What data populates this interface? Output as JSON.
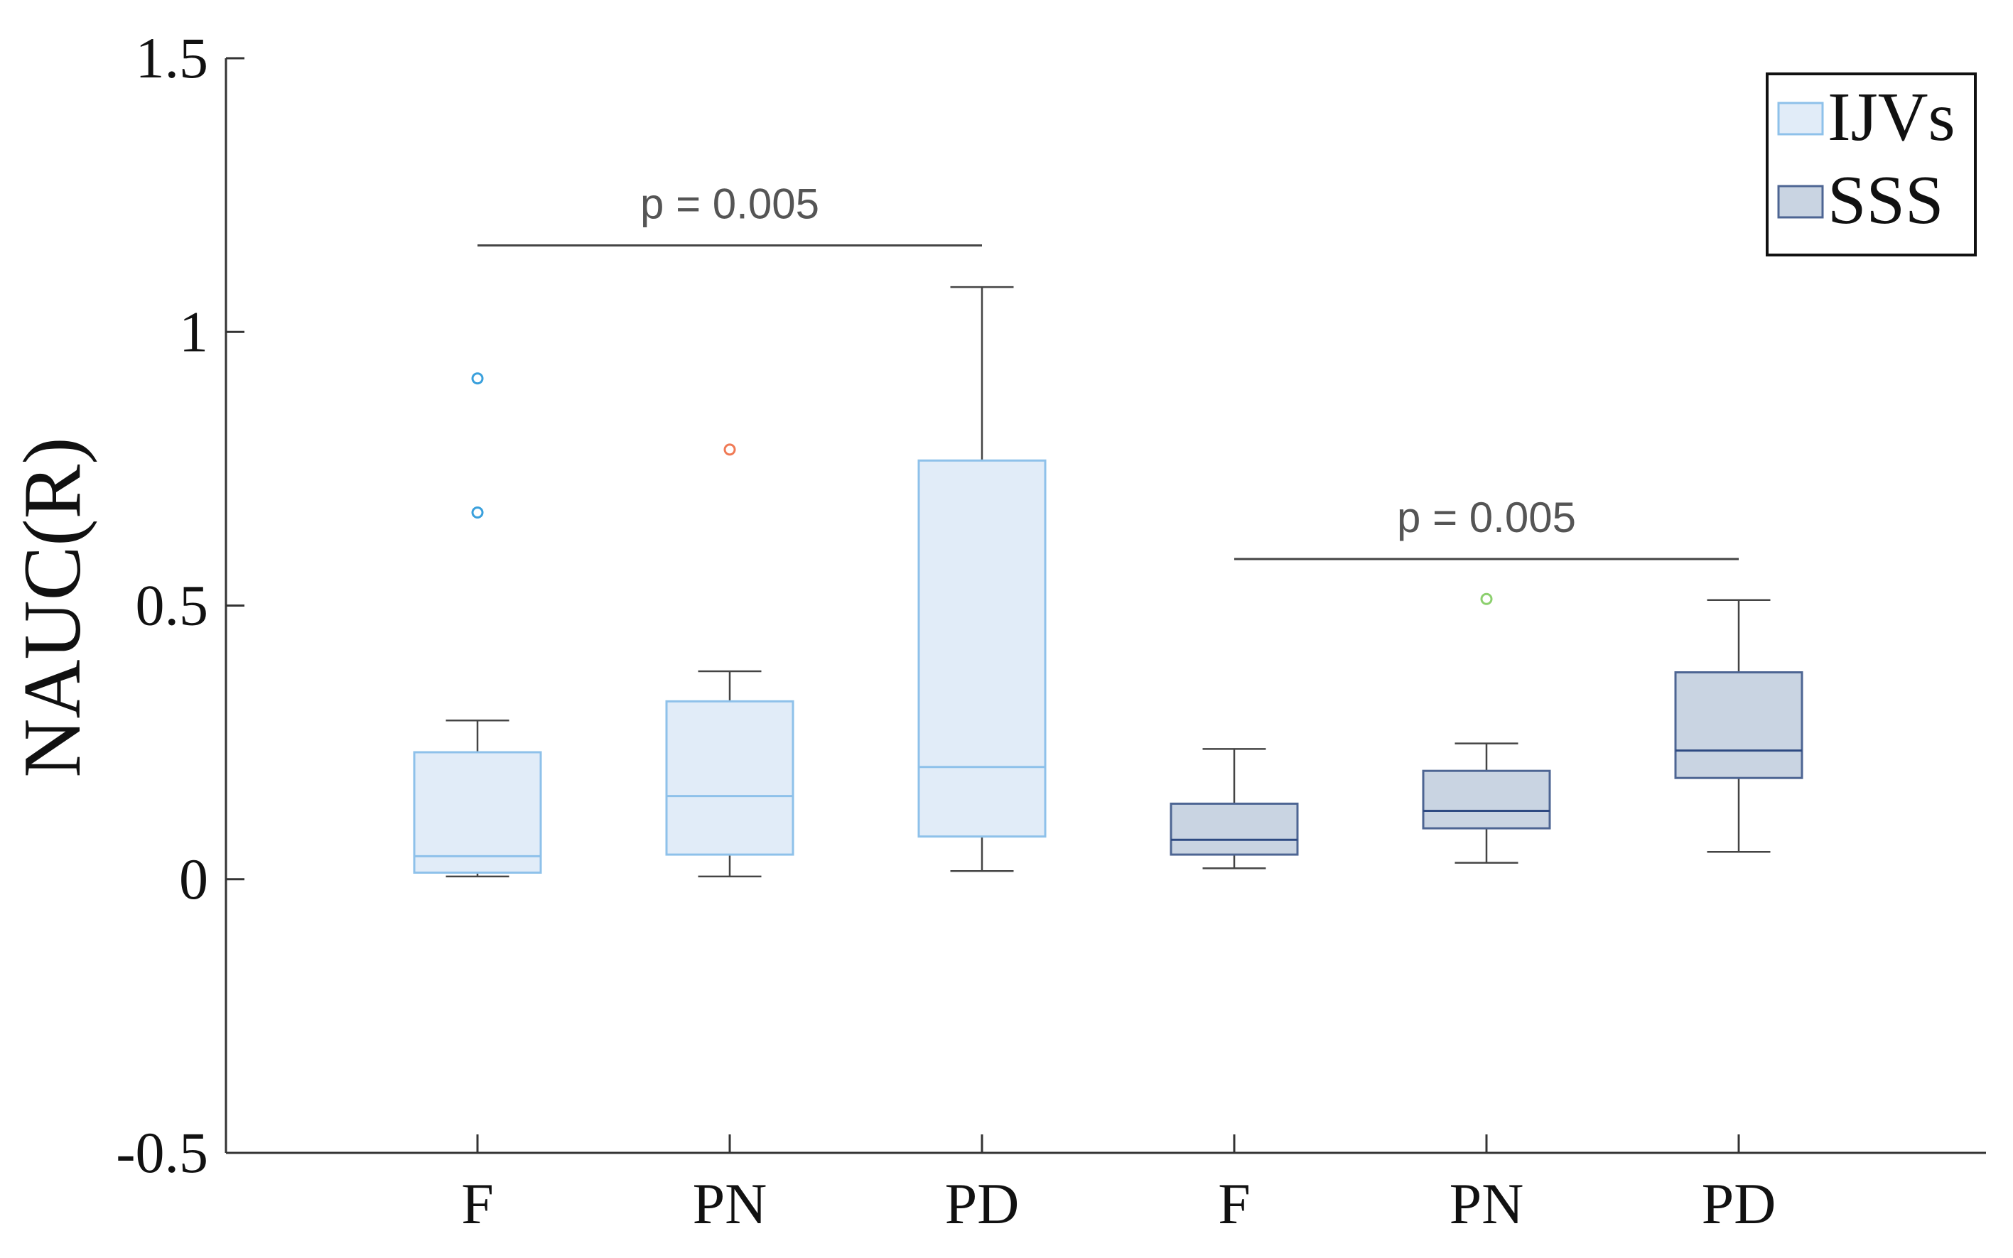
{
  "chart_data": {
    "type": "box",
    "ylabel": "NAUC(R)",
    "xlabel": "",
    "title": "",
    "ylim": [
      -0.5,
      1.5
    ],
    "yticks": [
      {
        "value": -0.5,
        "label": "-0.5"
      },
      {
        "value": 0,
        "label": "0"
      },
      {
        "value": 0.5,
        "label": "0.5"
      },
      {
        "value": 1,
        "label": "1"
      },
      {
        "value": 1.5,
        "label": "1.5"
      }
    ],
    "grid": false,
    "legend_position": "top-right",
    "series": [
      {
        "name": "IJVs",
        "fill": "#e1ecf8",
        "stroke": "#8ec1ea",
        "median_color": "#8ec1ea"
      },
      {
        "name": "SSS",
        "fill": "#c9d4e2",
        "stroke": "#4d6593",
        "median_color": "#2e4a82"
      }
    ],
    "boxes": [
      {
        "label": "F",
        "series": 0,
        "whisker_low": 0.005,
        "q1": 0.012,
        "median": 0.042,
        "q3": 0.232,
        "whisker_high": 0.29,
        "outliers": [
          {
            "value": 0.915,
            "color": "#3aa0dc"
          },
          {
            "value": 0.67,
            "color": "#3aa0dc"
          }
        ]
      },
      {
        "label": "PN",
        "series": 0,
        "whisker_low": 0.005,
        "q1": 0.045,
        "median": 0.152,
        "q3": 0.325,
        "whisker_high": 0.38,
        "outliers": [
          {
            "value": 0.785,
            "color": "#f07a55"
          }
        ]
      },
      {
        "label": "PD",
        "series": 0,
        "whisker_low": 0.015,
        "q1": 0.078,
        "median": 0.205,
        "q3": 0.765,
        "whisker_high": 1.082,
        "outliers": []
      },
      {
        "label": "F",
        "series": 1,
        "whisker_low": 0.02,
        "q1": 0.045,
        "median": 0.072,
        "q3": 0.138,
        "whisker_high": 0.238,
        "outliers": []
      },
      {
        "label": "PN",
        "series": 1,
        "whisker_low": 0.03,
        "q1": 0.093,
        "median": 0.125,
        "q3": 0.198,
        "whisker_high": 0.248,
        "outliers": [
          {
            "value": 0.512,
            "color": "#8cd06e"
          }
        ]
      },
      {
        "label": "PD",
        "series": 1,
        "whisker_low": 0.05,
        "q1": 0.185,
        "median": 0.235,
        "q3": 0.378,
        "whisker_high": 0.51,
        "outliers": []
      }
    ],
    "annotations": [
      {
        "text": "p =  0.005",
        "from_box": 0,
        "to_box": 2,
        "y": 1.158
      },
      {
        "text": "p =  0.005",
        "from_box": 3,
        "to_box": 5,
        "y": 0.585
      }
    ]
  }
}
